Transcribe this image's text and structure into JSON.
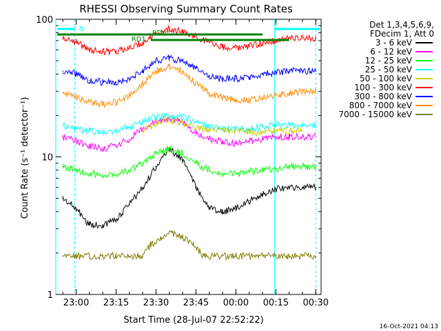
{
  "chart_data": {
    "type": "line",
    "title": "RHESSI Observing Summary Count Rates",
    "xlabel": "Start Time (28-Jul-07 22:52:22)",
    "ylabel": "Count Rate (s⁻¹ detector⁻¹)",
    "y_scale": "log",
    "ylim": [
      1,
      100
    ],
    "y_ticks": [
      "1",
      "10",
      "100"
    ],
    "x_range": [
      "22:52:22",
      "00:32:00"
    ],
    "x_ticks": [
      "23:00",
      "23:15",
      "23:30",
      "23:45",
      "00:00",
      "00:15",
      "00:30"
    ],
    "grid": false,
    "legend_position": "top-right",
    "legend_header": [
      "Det 1,3,4,5,6,9,",
      "FDecim 1, Att 0"
    ],
    "timestamp": "16-Oct-2021 04:13",
    "annotations": {
      "night_label": "N",
      "rd0_label": "RD0",
      "rd1_label": "RD1"
    },
    "series": [
      {
        "name": "3 - 6 keV",
        "color": "#000000",
        "points": [
          [
            "22:55",
            5.0
          ],
          [
            "23:00",
            4.2
          ],
          [
            "23:05",
            3.2
          ],
          [
            "23:10",
            3.2
          ],
          [
            "23:15",
            3.5
          ],
          [
            "23:20",
            4.5
          ],
          [
            "23:25",
            6.0
          ],
          [
            "23:30",
            8.5
          ],
          [
            "23:35",
            11.5
          ],
          [
            "23:40",
            9.5
          ],
          [
            "23:45",
            6.0
          ],
          [
            "23:50",
            4.3
          ],
          [
            "23:55",
            4.0
          ],
          [
            "00:00",
            4.2
          ],
          [
            "00:05",
            4.8
          ],
          [
            "00:10",
            5.4
          ],
          [
            "00:15",
            5.8
          ],
          [
            "00:20",
            6.0
          ],
          [
            "00:25",
            6.0
          ],
          [
            "00:30",
            6.0
          ]
        ]
      },
      {
        "name": "6 - 12 keV",
        "color": "#ff00ff",
        "points": [
          [
            "22:55",
            14
          ],
          [
            "23:00",
            13
          ],
          [
            "23:05",
            12
          ],
          [
            "23:10",
            11.5
          ],
          [
            "23:15",
            12
          ],
          [
            "23:20",
            13.5
          ],
          [
            "23:25",
            16
          ],
          [
            "23:30",
            18
          ],
          [
            "23:35",
            19
          ],
          [
            "23:40",
            18
          ],
          [
            "23:45",
            15
          ],
          [
            "23:50",
            13.5
          ],
          [
            "23:55",
            13
          ],
          [
            "00:00",
            12.5
          ],
          [
            "00:05",
            13
          ],
          [
            "00:10",
            13.5
          ],
          [
            "00:15",
            14
          ],
          [
            "00:20",
            14
          ],
          [
            "00:25",
            14
          ],
          [
            "00:30",
            14
          ]
        ]
      },
      {
        "name": "12 - 25 keV",
        "color": "#00ff00",
        "points": [
          [
            "22:55",
            8.5
          ],
          [
            "23:00",
            8.0
          ],
          [
            "23:05",
            7.5
          ],
          [
            "23:10",
            7.5
          ],
          [
            "23:15",
            7.5
          ],
          [
            "23:20",
            8.0
          ],
          [
            "23:25",
            9.0
          ],
          [
            "23:30",
            10.5
          ],
          [
            "23:35",
            11.5
          ],
          [
            "23:40",
            10.5
          ],
          [
            "23:45",
            9.0
          ],
          [
            "23:50",
            8.0
          ],
          [
            "23:55",
            7.5
          ],
          [
            "00:00",
            7.5
          ],
          [
            "00:05",
            7.8
          ],
          [
            "00:10",
            8.0
          ],
          [
            "00:15",
            8.2
          ],
          [
            "00:20",
            8.5
          ],
          [
            "00:25",
            8.5
          ],
          [
            "00:30",
            8.5
          ]
        ]
      },
      {
        "name": "25 - 50 keV",
        "color": "#00ffff",
        "points": [
          [
            "22:55",
            17
          ],
          [
            "23:00",
            16
          ],
          [
            "23:05",
            15.5
          ],
          [
            "23:10",
            15
          ],
          [
            "23:15",
            15.5
          ],
          [
            "23:20",
            16.5
          ],
          [
            "23:25",
            18
          ],
          [
            "23:30",
            19.5
          ],
          [
            "23:35",
            20
          ],
          [
            "23:40",
            19.5
          ],
          [
            "23:45",
            18
          ],
          [
            "23:50",
            16.5
          ],
          [
            "23:55",
            16
          ],
          [
            "00:00",
            16
          ],
          [
            "00:05",
            16
          ],
          [
            "00:10",
            16.5
          ],
          [
            "00:15",
            17
          ],
          [
            "00:20",
            17
          ],
          [
            "00:25",
            17
          ],
          [
            "00:30",
            17
          ]
        ]
      },
      {
        "name": "50 - 100 keV",
        "color": "#cccc00",
        "points": [
          [
            "23:25",
            15.5
          ],
          [
            "23:30",
            17.5
          ],
          [
            "23:35",
            18.5
          ],
          [
            "23:40",
            17.5
          ],
          [
            "23:45",
            16
          ],
          [
            "00:10",
            15
          ],
          [
            "00:15",
            15.5
          ],
          [
            "00:20",
            15.5
          ],
          [
            "00:25",
            15.5
          ]
        ]
      },
      {
        "name": "100 - 300 keV",
        "color": "#ff0000",
        "points": [
          [
            "22:55",
            73
          ],
          [
            "23:00",
            68
          ],
          [
            "23:05",
            60
          ],
          [
            "23:10",
            58
          ],
          [
            "23:15",
            58
          ],
          [
            "23:20",
            62
          ],
          [
            "23:25",
            68
          ],
          [
            "23:28",
            74
          ],
          [
            "23:30",
            80
          ],
          [
            "23:35",
            85
          ],
          [
            "23:40",
            82
          ],
          [
            "23:45",
            75
          ],
          [
            "23:50",
            68
          ],
          [
            "23:55",
            63
          ],
          [
            "00:00",
            62
          ],
          [
            "00:05",
            64
          ],
          [
            "00:10",
            67
          ],
          [
            "00:15",
            70
          ],
          [
            "00:20",
            73
          ],
          [
            "00:25",
            73
          ],
          [
            "00:30",
            73
          ]
        ]
      },
      {
        "name": "300 - 800 keV",
        "color": "#0000ff",
        "points": [
          [
            "22:55",
            42
          ],
          [
            "23:00",
            40
          ],
          [
            "23:05",
            36
          ],
          [
            "23:10",
            35
          ],
          [
            "23:15",
            35
          ],
          [
            "23:20",
            37
          ],
          [
            "23:25",
            42
          ],
          [
            "23:30",
            50
          ],
          [
            "23:35",
            52
          ],
          [
            "23:40",
            50
          ],
          [
            "23:45",
            44
          ],
          [
            "23:50",
            39
          ],
          [
            "23:55",
            37
          ],
          [
            "00:00",
            37
          ],
          [
            "00:05",
            38
          ],
          [
            "00:10",
            40
          ],
          [
            "00:15",
            41
          ],
          [
            "00:20",
            42
          ],
          [
            "00:25",
            42
          ],
          [
            "00:30",
            42
          ]
        ]
      },
      {
        "name": "800 - 7000 keV",
        "color": "#ff8c00",
        "points": [
          [
            "22:55",
            29
          ],
          [
            "23:00",
            27
          ],
          [
            "23:05",
            25
          ],
          [
            "23:10",
            24
          ],
          [
            "23:15",
            25
          ],
          [
            "23:20",
            28
          ],
          [
            "23:25",
            34
          ],
          [
            "23:30",
            42
          ],
          [
            "23:35",
            46
          ],
          [
            "23:40",
            42
          ],
          [
            "23:45",
            34
          ],
          [
            "23:50",
            29
          ],
          [
            "23:55",
            27
          ],
          [
            "00:00",
            26
          ],
          [
            "00:05",
            26
          ],
          [
            "00:10",
            27
          ],
          [
            "00:15",
            28
          ],
          [
            "00:20",
            29
          ],
          [
            "00:25",
            30
          ],
          [
            "00:30",
            30
          ]
        ]
      },
      {
        "name": "7000 - 15000 keV",
        "color": "#808000",
        "points": [
          [
            "22:55",
            1.9
          ],
          [
            "23:00",
            1.9
          ],
          [
            "23:05",
            1.9
          ],
          [
            "23:10",
            1.9
          ],
          [
            "23:15",
            1.9
          ],
          [
            "23:20",
            1.9
          ],
          [
            "23:25",
            1.9
          ],
          [
            "23:28",
            2.3
          ],
          [
            "23:32",
            2.6
          ],
          [
            "23:36",
            2.8
          ],
          [
            "23:40",
            2.6
          ],
          [
            "23:44",
            2.3
          ],
          [
            "23:48",
            1.9
          ],
          [
            "23:52",
            1.9
          ],
          [
            "00:10",
            1.9
          ],
          [
            "00:15",
            1.9
          ],
          [
            "00:20",
            1.9
          ],
          [
            "00:25",
            1.9
          ],
          [
            "00:30",
            1.9
          ]
        ]
      }
    ]
  }
}
